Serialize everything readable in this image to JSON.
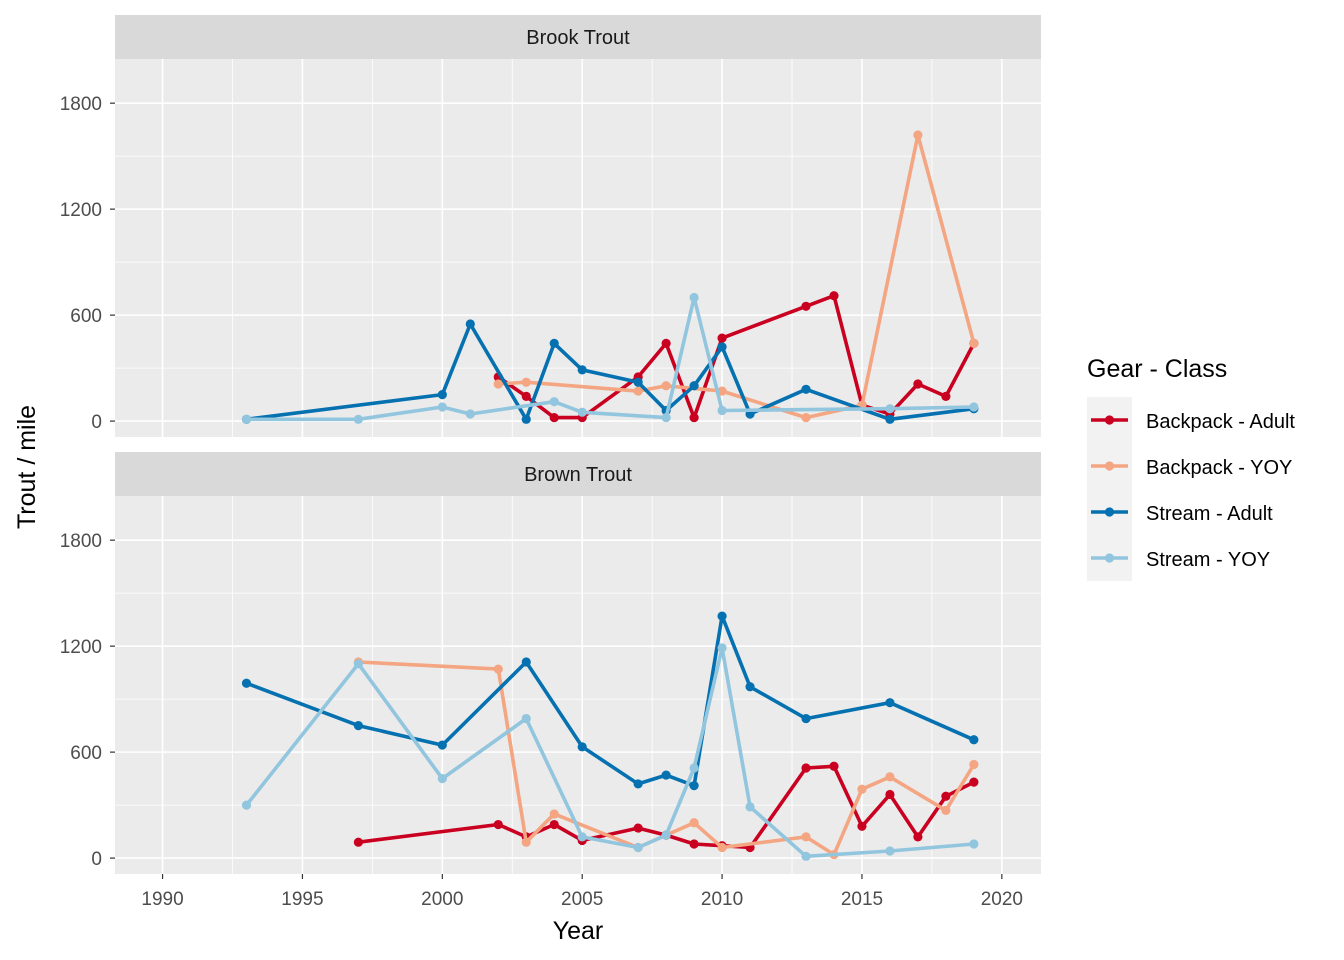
{
  "chart_data": {
    "type": "line",
    "xlabel": "Year",
    "ylabel": "Trout / mile",
    "xlim": [
      1988.3,
      2021.4
    ],
    "ylim": [
      -90,
      2050
    ],
    "x_ticks": [
      1990,
      1995,
      2000,
      2005,
      2010,
      2015,
      2020
    ],
    "y_ticks": [
      0,
      600,
      1200,
      1800
    ],
    "grid": true,
    "legend": {
      "title": "Gear - Class",
      "position": "right",
      "entries": [
        {
          "label": "Backpack - Adult",
          "color": "#ca0020"
        },
        {
          "label": "Backpack - YOY",
          "color": "#f4a582"
        },
        {
          "label": "Stream - Adult",
          "color": "#0571b0"
        },
        {
          "label": "Stream - YOY",
          "color": "#92c5de"
        }
      ]
    },
    "panels": [
      {
        "title": "Brook Trout",
        "series": [
          {
            "name": "Backpack - Adult",
            "color": "#ca0020",
            "x": [
              2002,
              2003,
              2004,
              2005,
              2007,
              2008,
              2009,
              2010,
              2013,
              2014,
              2015,
              2016,
              2017,
              2018,
              2019
            ],
            "y": [
              250,
              140,
              20,
              20,
              250,
              440,
              20,
              470,
              650,
              710,
              90,
              40,
              210,
              140,
              440
            ]
          },
          {
            "name": "Backpack - YOY",
            "color": "#f4a582",
            "x": [
              2002,
              2003,
              2007,
              2008,
              2010,
              2013,
              2015,
              2017,
              2019
            ],
            "y": [
              210,
              220,
              170,
              200,
              170,
              20,
              90,
              1620,
              440
            ]
          },
          {
            "name": "Stream - Adult",
            "color": "#0571b0",
            "x": [
              1993,
              2000,
              2001,
              2003,
              2004,
              2005,
              2007,
              2008,
              2009,
              2010,
              2011,
              2013,
              2016,
              2019
            ],
            "y": [
              10,
              150,
              550,
              10,
              440,
              290,
              220,
              60,
              200,
              420,
              40,
              180,
              10,
              70
            ]
          },
          {
            "name": "Stream - YOY",
            "color": "#92c5de",
            "x": [
              1993,
              1997,
              2000,
              2001,
              2004,
              2005,
              2008,
              2009,
              2010,
              2016,
              2019
            ],
            "y": [
              10,
              10,
              80,
              40,
              110,
              50,
              20,
              700,
              60,
              70,
              80
            ]
          }
        ]
      },
      {
        "title": "Brown Trout",
        "series": [
          {
            "name": "Backpack - Adult",
            "color": "#ca0020",
            "x": [
              1997,
              2002,
              2003,
              2004,
              2005,
              2007,
              2008,
              2009,
              2010,
              2011,
              2013,
              2014,
              2015,
              2016,
              2017,
              2018,
              2019
            ],
            "y": [
              90,
              190,
              120,
              190,
              100,
              170,
              130,
              80,
              70,
              60,
              510,
              520,
              180,
              360,
              120,
              350,
              430
            ]
          },
          {
            "name": "Backpack - YOY",
            "color": "#f4a582",
            "x": [
              1997,
              2002,
              2003,
              2004,
              2007,
              2009,
              2010,
              2013,
              2014,
              2015,
              2016,
              2018,
              2019
            ],
            "y": [
              1110,
              1070,
              90,
              250,
              60,
              200,
              60,
              120,
              20,
              390,
              460,
              270,
              530
            ]
          },
          {
            "name": "Stream - Adult",
            "color": "#0571b0",
            "x": [
              1993,
              1997,
              2000,
              2003,
              2005,
              2007,
              2008,
              2009,
              2010,
              2011,
              2013,
              2016,
              2019
            ],
            "y": [
              990,
              750,
              640,
              1110,
              630,
              420,
              470,
              410,
              1370,
              970,
              790,
              880,
              670
            ]
          },
          {
            "name": "Stream - YOY",
            "color": "#92c5de",
            "x": [
              1993,
              1997,
              2000,
              2003,
              2005,
              2007,
              2008,
              2009,
              2010,
              2011,
              2013,
              2016,
              2019
            ],
            "y": [
              300,
              1100,
              450,
              790,
              120,
              60,
              130,
              510,
              1190,
              290,
              10,
              40,
              80
            ]
          }
        ]
      }
    ]
  }
}
